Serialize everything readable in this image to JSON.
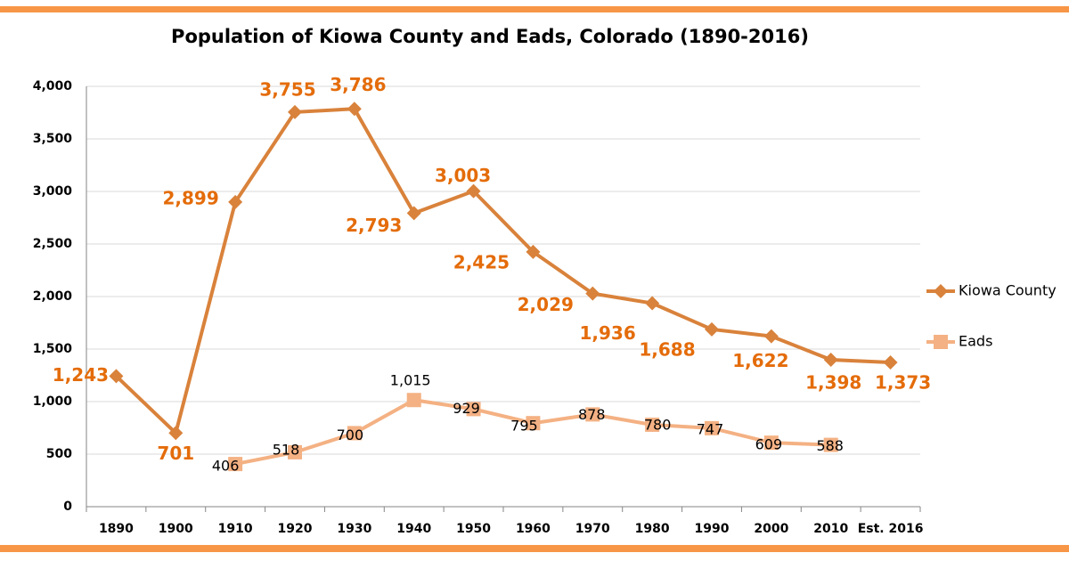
{
  "chart_data": {
    "type": "line",
    "title": "Population of Kiowa County and Eads, Colorado (1890-2016)",
    "categories": [
      "1890",
      "1900",
      "1910",
      "1920",
      "1930",
      "1940",
      "1950",
      "1960",
      "1970",
      "1980",
      "1990",
      "2000",
      "2010",
      "Est. 2016"
    ],
    "series": [
      {
        "name": "Kiowa County",
        "color": "#d9823b",
        "label_color": "#e46c0a",
        "values": [
          1243,
          701,
          2899,
          3755,
          3786,
          2793,
          3003,
          2425,
          2029,
          1936,
          1688,
          1622,
          1398,
          1373
        ],
        "value_labels": [
          "1,243",
          "701",
          "2,899",
          "3,755",
          "3,786",
          "2,793",
          "3,003",
          "2,425",
          "2,029",
          "1,936",
          "1,688",
          "1,622",
          "1,398",
          "1,373"
        ]
      },
      {
        "name": "Eads",
        "color": "#f4b183",
        "label_color": "#000000",
        "values": [
          null,
          null,
          406,
          518,
          700,
          1015,
          929,
          795,
          878,
          780,
          747,
          609,
          588,
          null
        ],
        "value_labels": [
          null,
          null,
          "406",
          "518",
          "700",
          "1,015",
          "929",
          "795",
          "878",
          "780",
          "747",
          "609",
          "588",
          null
        ]
      }
    ],
    "ylim": [
      0,
      4000
    ],
    "yticks": [
      0,
      500,
      {
        "value": 1000,
        "label": "1,000"
      },
      {
        "value": 1500,
        "label": "1,500"
      },
      {
        "value": 2000,
        "label": "2,000"
      },
      {
        "value": 2500,
        "label": "2,500"
      },
      {
        "value": 3000,
        "label": "3,000"
      },
      {
        "value": 3500,
        "label": "3,500"
      },
      {
        "value": 4000,
        "label": "4,000"
      }
    ],
    "grid": true,
    "legend": "right"
  }
}
